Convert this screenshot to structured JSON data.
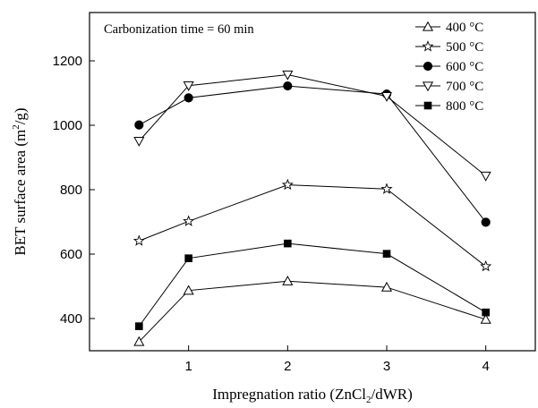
{
  "chart_data": {
    "type": "line",
    "annotation": "Carbonization time = 60 min",
    "xlabel": "Impregnation ratio (ZnCl",
    "xlabel_sub": "2",
    "xlabel_suffix": "/dWR)",
    "ylabel": "BET surface area (m",
    "ylabel_sup": "2",
    "ylabel_suffix": "/g)",
    "xlim": [
      0,
      4.5
    ],
    "ylim": [
      300,
      1350
    ],
    "x_ticks": [
      1,
      2,
      3,
      4
    ],
    "x_tick_labels": [
      "1",
      "2",
      "3",
      "4"
    ],
    "y_ticks": [
      400,
      600,
      800,
      1000,
      1200
    ],
    "y_tick_labels": [
      "400",
      "600",
      "800",
      "1000",
      "1200"
    ],
    "grid": false,
    "legend_position": "top-right",
    "x": [
      0.5,
      1,
      2,
      3,
      4
    ],
    "series": [
      {
        "name": "400 °C",
        "marker": "triangle-up-open",
        "values": [
          328,
          487,
          516,
          497,
          397
        ]
      },
      {
        "name": "500 °C",
        "marker": "star-open",
        "values": [
          641,
          702,
          815,
          802,
          562
        ]
      },
      {
        "name": "600 °C",
        "marker": "circle-filled",
        "values": [
          1001,
          1085,
          1122,
          1097,
          699
        ]
      },
      {
        "name": "700 °C",
        "marker": "triangle-down-open",
        "values": [
          951,
          1123,
          1157,
          1090,
          843
        ]
      },
      {
        "name": "800 °C",
        "marker": "square-filled",
        "values": [
          376,
          587,
          633,
          601,
          419
        ]
      }
    ]
  }
}
